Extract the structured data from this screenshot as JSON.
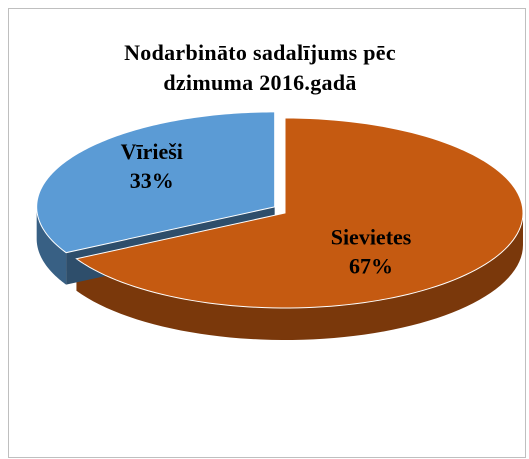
{
  "chart_data": {
    "type": "pie",
    "title": "Nodarbināto sadalījums pēc dzimuma 2016.gadā",
    "categories": [
      "Sievietes",
      "Vīrieši"
    ],
    "values": [
      67,
      33
    ],
    "value_labels": [
      "67%",
      "33%"
    ],
    "colors": [
      "#c55a11",
      "#5b9bd5"
    ]
  }
}
